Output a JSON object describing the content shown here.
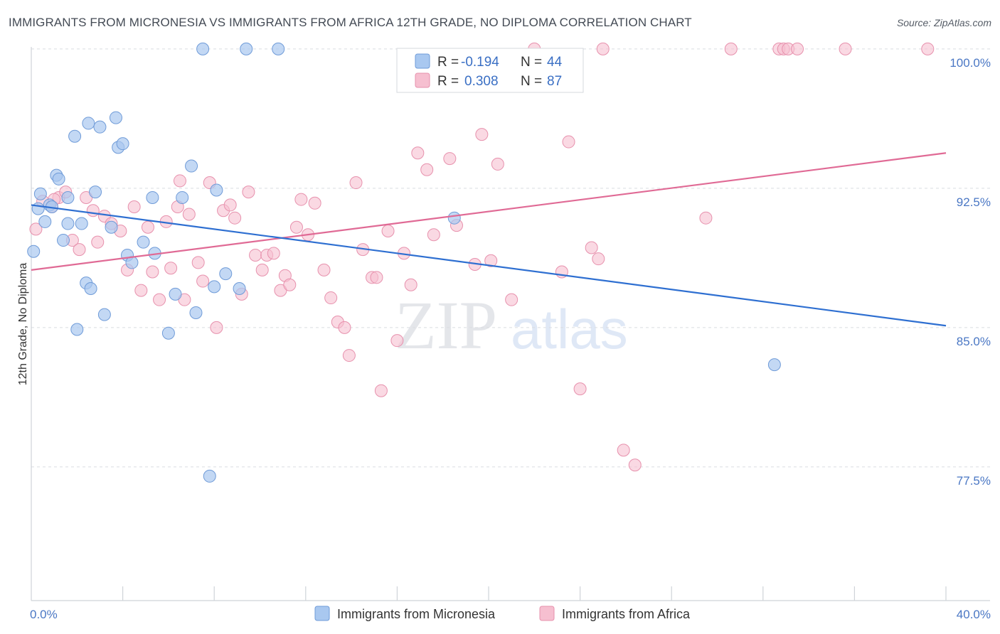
{
  "title": "IMMIGRANTS FROM MICRONESIA VS IMMIGRANTS FROM AFRICA 12TH GRADE, NO DIPLOMA CORRELATION CHART",
  "source": "Source: ZipAtlas.com",
  "watermark": {
    "zip": "ZIP",
    "atlas": "atlas"
  },
  "colors": {
    "blue_fill": "#a9c8f0",
    "blue_stroke": "#6f9bd8",
    "blue_line": "#2e6fd1",
    "pink_fill": "#f6bfd0",
    "pink_stroke": "#e791ad",
    "pink_line": "#e06a95",
    "value_text": "#3a6fc4"
  },
  "chart_data": {
    "type": "scatter",
    "xlabel": "",
    "ylabel": "12th Grade, No Diploma",
    "xlim": [
      0,
      40
    ],
    "ylim": [
      70.3,
      100.8
    ],
    "x_tick_labels": [
      "0.0%",
      "40.0%"
    ],
    "y_ticks": [
      100.0,
      92.5,
      85.0,
      77.5
    ],
    "y_tick_labels": [
      "100.0%",
      "92.5%",
      "85.0%",
      "77.5%"
    ],
    "grid": true,
    "legend": {
      "position": "top-center",
      "rows": [
        {
          "r_label": "R =",
          "r_value": "-0.194",
          "n_label": "N =",
          "n_value": "44"
        },
        {
          "r_label": "R =",
          "r_value": "0.308",
          "n_label": "N =",
          "n_value": "87"
        }
      ]
    },
    "series": [
      {
        "name": "Immigrants from Micronesia",
        "trend": {
          "x": [
            0,
            40
          ],
          "y": [
            91.6,
            85.1
          ]
        },
        "points": [
          {
            "x": 0.1,
            "y": 89.1
          },
          {
            "x": 0.3,
            "y": 91.4
          },
          {
            "x": 0.4,
            "y": 92.2
          },
          {
            "x": 0.6,
            "y": 90.7
          },
          {
            "x": 0.8,
            "y": 91.6
          },
          {
            "x": 0.9,
            "y": 91.5
          },
          {
            "x": 1.1,
            "y": 93.2
          },
          {
            "x": 1.2,
            "y": 93.0
          },
          {
            "x": 1.4,
            "y": 89.7
          },
          {
            "x": 1.6,
            "y": 90.6
          },
          {
            "x": 1.6,
            "y": 92.0
          },
          {
            "x": 1.9,
            "y": 95.3
          },
          {
            "x": 2.0,
            "y": 84.9
          },
          {
            "x": 2.2,
            "y": 90.6
          },
          {
            "x": 2.4,
            "y": 87.4
          },
          {
            "x": 2.5,
            "y": 96.0
          },
          {
            "x": 2.6,
            "y": 87.1
          },
          {
            "x": 2.8,
            "y": 92.3
          },
          {
            "x": 3.0,
            "y": 95.8
          },
          {
            "x": 3.2,
            "y": 85.7
          },
          {
            "x": 3.5,
            "y": 90.4
          },
          {
            "x": 3.7,
            "y": 96.3
          },
          {
            "x": 3.8,
            "y": 94.7
          },
          {
            "x": 4.0,
            "y": 94.9
          },
          {
            "x": 4.2,
            "y": 88.9
          },
          {
            "x": 4.4,
            "y": 88.5
          },
          {
            "x": 4.9,
            "y": 89.6
          },
          {
            "x": 5.3,
            "y": 92.0
          },
          {
            "x": 5.4,
            "y": 89.0
          },
          {
            "x": 6.0,
            "y": 84.7
          },
          {
            "x": 6.3,
            "y": 86.8
          },
          {
            "x": 6.6,
            "y": 92.0
          },
          {
            "x": 7.0,
            "y": 93.7
          },
          {
            "x": 7.2,
            "y": 85.8
          },
          {
            "x": 7.5,
            "y": 100.0
          },
          {
            "x": 7.8,
            "y": 77.0
          },
          {
            "x": 8.0,
            "y": 87.2
          },
          {
            "x": 8.1,
            "y": 92.4
          },
          {
            "x": 8.5,
            "y": 87.9
          },
          {
            "x": 9.1,
            "y": 87.1
          },
          {
            "x": 9.4,
            "y": 100.0
          },
          {
            "x": 10.8,
            "y": 100.0
          },
          {
            "x": 18.5,
            "y": 90.9
          },
          {
            "x": 32.5,
            "y": 83.0
          }
        ]
      },
      {
        "name": "Immigrants from Africa",
        "trend": {
          "x": [
            0,
            40
          ],
          "y": [
            88.1,
            94.4
          ]
        },
        "points": [
          {
            "x": 0.2,
            "y": 90.3
          },
          {
            "x": 0.5,
            "y": 91.8
          },
          {
            "x": 0.9,
            "y": 91.5
          },
          {
            "x": 1.2,
            "y": 92.0
          },
          {
            "x": 1.5,
            "y": 92.3
          },
          {
            "x": 1.8,
            "y": 89.7
          },
          {
            "x": 2.1,
            "y": 89.2
          },
          {
            "x": 2.4,
            "y": 92.0
          },
          {
            "x": 2.7,
            "y": 91.3
          },
          {
            "x": 2.9,
            "y": 89.6
          },
          {
            "x": 3.2,
            "y": 91.0
          },
          {
            "x": 3.5,
            "y": 90.6
          },
          {
            "x": 3.9,
            "y": 90.2
          },
          {
            "x": 4.2,
            "y": 88.1
          },
          {
            "x": 4.5,
            "y": 91.5
          },
          {
            "x": 4.8,
            "y": 87.0
          },
          {
            "x": 5.1,
            "y": 90.4
          },
          {
            "x": 5.3,
            "y": 88.0
          },
          {
            "x": 5.6,
            "y": 86.5
          },
          {
            "x": 5.9,
            "y": 90.7
          },
          {
            "x": 6.1,
            "y": 88.2
          },
          {
            "x": 6.4,
            "y": 91.5
          },
          {
            "x": 6.7,
            "y": 86.5
          },
          {
            "x": 6.9,
            "y": 91.1
          },
          {
            "x": 7.3,
            "y": 88.5
          },
          {
            "x": 7.5,
            "y": 87.5
          },
          {
            "x": 7.8,
            "y": 92.8
          },
          {
            "x": 8.1,
            "y": 85.0
          },
          {
            "x": 8.4,
            "y": 91.3
          },
          {
            "x": 8.7,
            "y": 91.6
          },
          {
            "x": 8.9,
            "y": 90.9
          },
          {
            "x": 9.2,
            "y": 86.8
          },
          {
            "x": 9.5,
            "y": 92.3
          },
          {
            "x": 9.8,
            "y": 88.9
          },
          {
            "x": 10.1,
            "y": 88.1
          },
          {
            "x": 10.3,
            "y": 88.9
          },
          {
            "x": 10.6,
            "y": 89.0
          },
          {
            "x": 10.9,
            "y": 87.0
          },
          {
            "x": 11.1,
            "y": 87.8
          },
          {
            "x": 11.3,
            "y": 87.3
          },
          {
            "x": 11.6,
            "y": 90.4
          },
          {
            "x": 11.8,
            "y": 91.9
          },
          {
            "x": 12.1,
            "y": 90.0
          },
          {
            "x": 12.4,
            "y": 91.7
          },
          {
            "x": 12.8,
            "y": 88.1
          },
          {
            "x": 13.1,
            "y": 86.6
          },
          {
            "x": 13.4,
            "y": 85.3
          },
          {
            "x": 13.7,
            "y": 85.0
          },
          {
            "x": 13.9,
            "y": 83.5
          },
          {
            "x": 14.2,
            "y": 92.8
          },
          {
            "x": 14.5,
            "y": 89.2
          },
          {
            "x": 14.9,
            "y": 87.7
          },
          {
            "x": 15.1,
            "y": 87.7
          },
          {
            "x": 15.3,
            "y": 81.6
          },
          {
            "x": 15.6,
            "y": 90.2
          },
          {
            "x": 16.0,
            "y": 84.3
          },
          {
            "x": 16.3,
            "y": 89.0
          },
          {
            "x": 16.6,
            "y": 87.3
          },
          {
            "x": 16.9,
            "y": 94.4
          },
          {
            "x": 17.3,
            "y": 93.5
          },
          {
            "x": 17.6,
            "y": 90.0
          },
          {
            "x": 18.3,
            "y": 94.1
          },
          {
            "x": 18.6,
            "y": 90.5
          },
          {
            "x": 19.4,
            "y": 88.4
          },
          {
            "x": 19.7,
            "y": 95.4
          },
          {
            "x": 20.1,
            "y": 88.6
          },
          {
            "x": 20.4,
            "y": 93.8
          },
          {
            "x": 21.0,
            "y": 86.5
          },
          {
            "x": 22.0,
            "y": 100.0
          },
          {
            "x": 23.2,
            "y": 88.0
          },
          {
            "x": 23.5,
            "y": 95.0
          },
          {
            "x": 24.0,
            "y": 81.7
          },
          {
            "x": 24.5,
            "y": 89.3
          },
          {
            "x": 24.8,
            "y": 88.7
          },
          {
            "x": 25.0,
            "y": 100.0
          },
          {
            "x": 25.9,
            "y": 78.4
          },
          {
            "x": 26.4,
            "y": 77.6
          },
          {
            "x": 29.5,
            "y": 90.9
          },
          {
            "x": 30.6,
            "y": 100.0
          },
          {
            "x": 32.7,
            "y": 100.0
          },
          {
            "x": 32.9,
            "y": 100.0
          },
          {
            "x": 33.1,
            "y": 100.0
          },
          {
            "x": 33.5,
            "y": 100.0
          },
          {
            "x": 35.6,
            "y": 100.0
          },
          {
            "x": 39.2,
            "y": 100.0
          },
          {
            "x": 1.0,
            "y": 91.9
          },
          {
            "x": 6.5,
            "y": 92.9
          }
        ]
      }
    ]
  }
}
